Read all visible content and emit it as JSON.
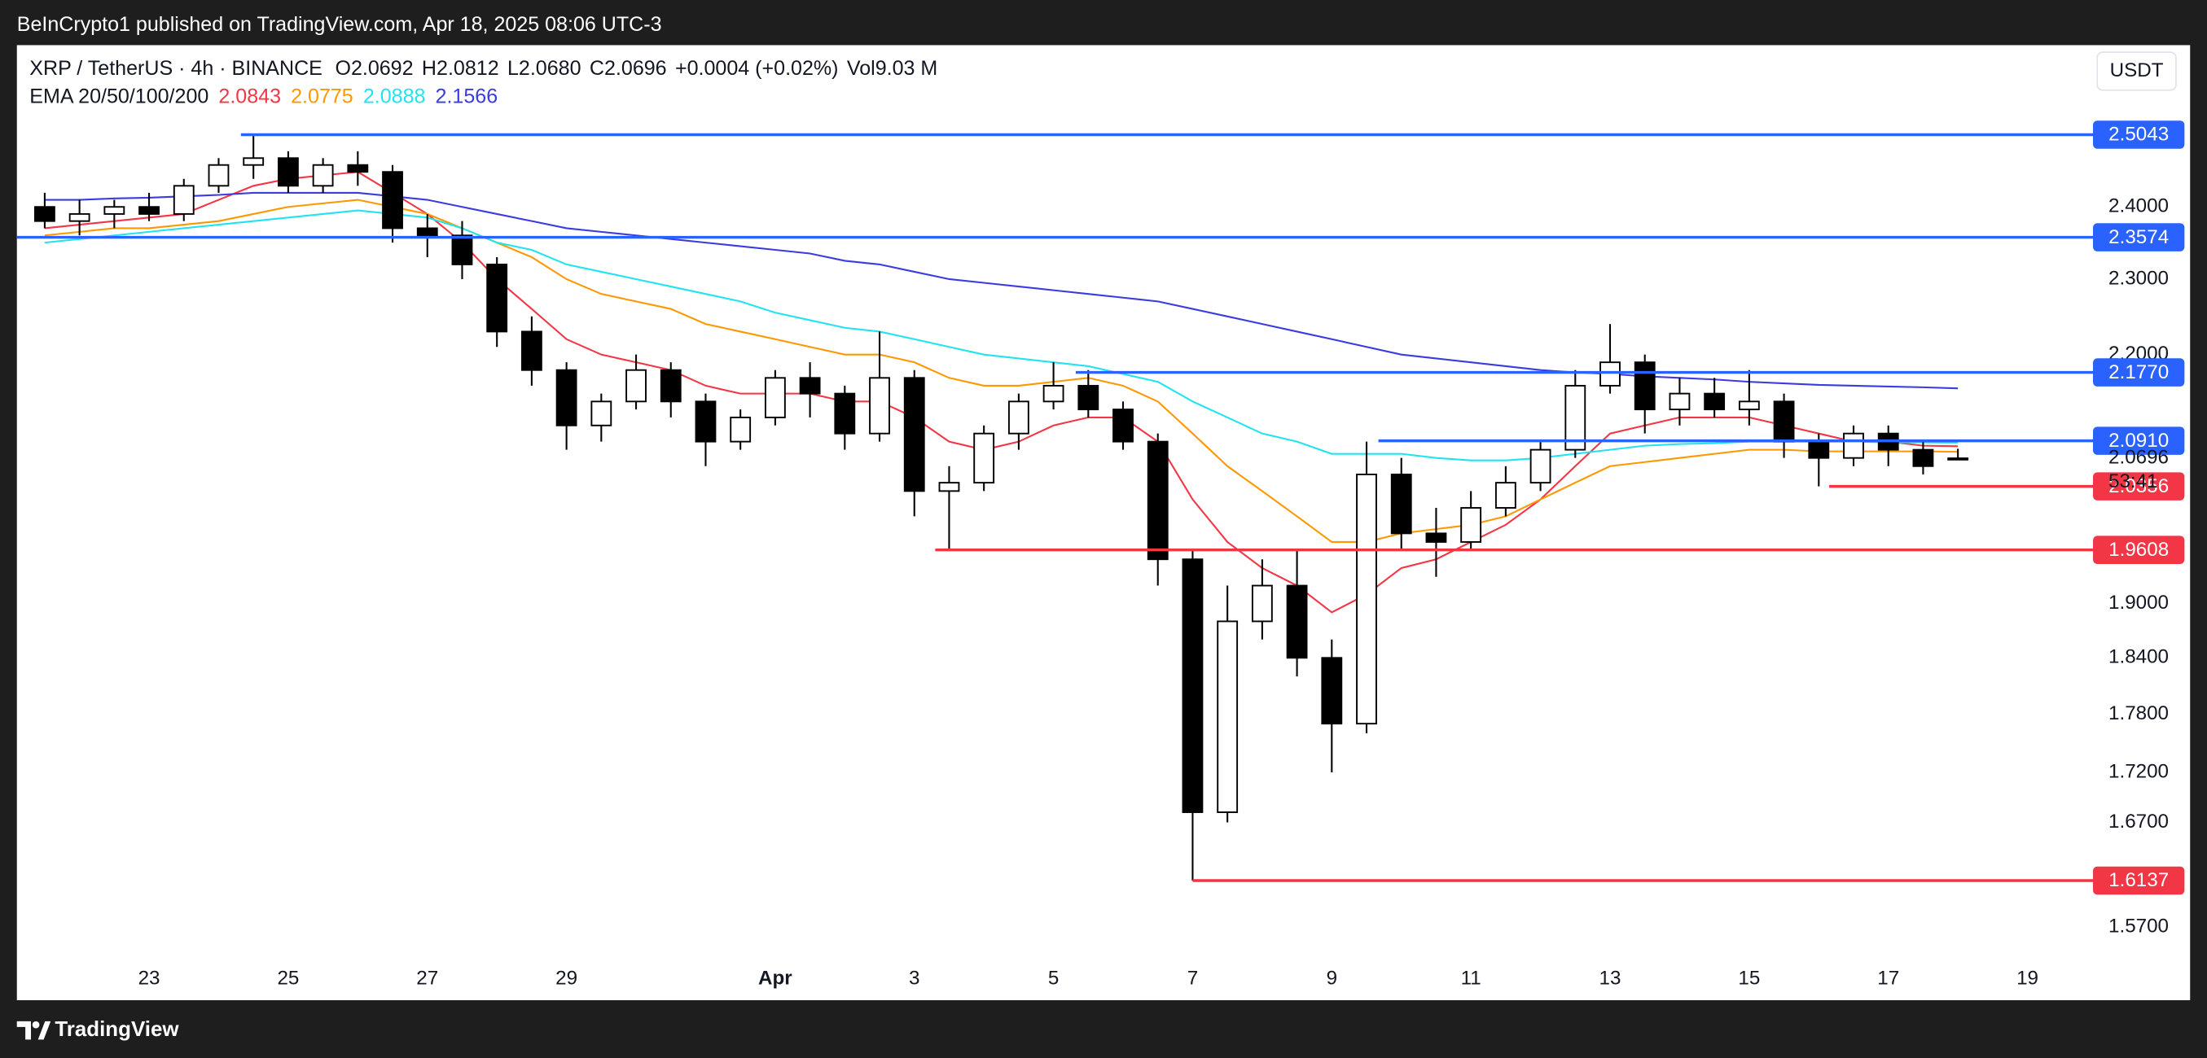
{
  "published_by": "BeInCrypto1 published on TradingView.com, Apr 18, 2025 08:06 UTC-3",
  "brand": "TradingView",
  "chart_data": {
    "type": "candlestick",
    "title": "XRP / TetherUS · 4h · BINANCE",
    "ohlc_legend": [
      {
        "label": "O",
        "value": "2.0692"
      },
      {
        "label": "H",
        "value": "2.0812"
      },
      {
        "label": "L",
        "value": "2.0680"
      },
      {
        "label": "C",
        "value": "2.0696"
      }
    ],
    "change": "+0.0004 (+0.02%)",
    "volume": {
      "label": "Vol",
      "value": "9.03 M"
    },
    "indicator_label": "EMA 20/50/100/200",
    "currency": "USDT",
    "countdown": "53:41",
    "up_color": "#ffffff",
    "down_color": "#000000",
    "x": [
      21.5,
      22,
      22.5,
      23,
      23.5,
      24,
      24.5,
      25,
      25.5,
      26,
      26.5,
      27,
      27.5,
      28,
      28.5,
      29,
      29.5,
      30,
      30.5,
      31,
      31.5,
      32,
      32.5,
      33,
      33.5,
      34,
      34.5,
      35,
      35.5,
      36,
      36.5,
      37,
      37.5,
      38,
      38.5,
      39,
      39.5,
      40,
      40.5,
      41,
      41.5,
      42,
      42.5,
      43,
      43.5,
      44,
      44.5,
      45,
      45.5,
      46,
      46.5,
      47,
      47.5,
      48,
      48.5,
      49
    ],
    "open": [
      2.4,
      2.38,
      2.39,
      2.4,
      2.39,
      2.43,
      2.46,
      2.47,
      2.43,
      2.46,
      2.45,
      2.37,
      2.36,
      2.32,
      2.23,
      2.18,
      2.11,
      2.14,
      2.18,
      2.14,
      2.09,
      2.12,
      2.17,
      2.15,
      2.1,
      2.17,
      2.03,
      2.04,
      2.1,
      2.14,
      2.16,
      2.13,
      2.09,
      1.95,
      1.68,
      1.88,
      1.92,
      1.84,
      1.77,
      2.05,
      1.98,
      1.97,
      2.01,
      2.04,
      2.08,
      2.16,
      2.19,
      2.13,
      2.15,
      2.13,
      2.14,
      2.09,
      2.07,
      2.1,
      2.08,
      2.0692
    ],
    "high": [
      2.42,
      2.41,
      2.41,
      2.42,
      2.44,
      2.47,
      2.5043,
      2.48,
      2.47,
      2.48,
      2.46,
      2.39,
      2.38,
      2.33,
      2.25,
      2.19,
      2.15,
      2.2,
      2.19,
      2.15,
      2.13,
      2.18,
      2.19,
      2.16,
      2.23,
      2.18,
      2.06,
      2.11,
      2.15,
      2.19,
      2.18,
      2.14,
      2.1,
      1.96,
      1.92,
      1.95,
      1.96,
      1.86,
      2.09,
      2.07,
      2.01,
      2.03,
      2.06,
      2.09,
      2.18,
      2.24,
      2.2,
      2.17,
      2.17,
      2.18,
      2.15,
      2.1,
      2.11,
      2.11,
      2.09,
      2.0812
    ],
    "low": [
      2.37,
      2.36,
      2.37,
      2.38,
      2.38,
      2.42,
      2.44,
      2.42,
      2.42,
      2.43,
      2.35,
      2.33,
      2.3,
      2.21,
      2.16,
      2.08,
      2.09,
      2.13,
      2.12,
      2.06,
      2.08,
      2.11,
      2.12,
      2.08,
      2.09,
      2.0,
      1.96,
      2.03,
      2.08,
      2.13,
      2.12,
      2.08,
      1.92,
      1.6137,
      1.67,
      1.86,
      1.82,
      1.72,
      1.76,
      1.96,
      1.93,
      1.96,
      2.0,
      2.03,
      2.07,
      2.15,
      2.1,
      2.11,
      2.12,
      2.11,
      2.07,
      2.0356,
      2.06,
      2.06,
      2.05,
      2.068
    ],
    "close": [
      2.38,
      2.39,
      2.4,
      2.39,
      2.43,
      2.46,
      2.47,
      2.43,
      2.46,
      2.45,
      2.37,
      2.36,
      2.32,
      2.23,
      2.18,
      2.11,
      2.14,
      2.18,
      2.14,
      2.09,
      2.12,
      2.17,
      2.15,
      2.1,
      2.17,
      2.03,
      2.04,
      2.1,
      2.14,
      2.16,
      2.13,
      2.09,
      1.95,
      1.68,
      1.88,
      1.92,
      1.84,
      1.77,
      2.05,
      1.98,
      1.97,
      2.01,
      2.04,
      2.08,
      2.16,
      2.19,
      2.13,
      2.15,
      2.13,
      2.14,
      2.09,
      2.07,
      2.1,
      2.08,
      2.06,
      2.0696
    ],
    "series": [
      {
        "color": "#f23645",
        "values": [
          2.37,
          2.375,
          2.38,
          2.385,
          2.39,
          2.41,
          2.43,
          2.44,
          2.445,
          2.45,
          2.42,
          2.39,
          2.35,
          2.3,
          2.26,
          2.22,
          2.2,
          2.19,
          2.18,
          2.16,
          2.15,
          2.15,
          2.15,
          2.14,
          2.14,
          2.12,
          2.09,
          2.08,
          2.09,
          2.11,
          2.12,
          2.12,
          2.09,
          2.02,
          1.97,
          1.94,
          1.92,
          1.89,
          1.91,
          1.94,
          1.95,
          1.97,
          1.99,
          2.02,
          2.06,
          2.1,
          2.11,
          2.12,
          2.12,
          2.12,
          2.11,
          2.1,
          2.09,
          2.09,
          2.085,
          2.0843
        ]
      },
      {
        "color": "#ff9800",
        "values": [
          2.36,
          2.365,
          2.37,
          2.37,
          2.375,
          2.38,
          2.39,
          2.4,
          2.405,
          2.41,
          2.4,
          2.39,
          2.37,
          2.35,
          2.33,
          2.3,
          2.28,
          2.27,
          2.26,
          2.24,
          2.23,
          2.22,
          2.21,
          2.2,
          2.2,
          2.19,
          2.17,
          2.16,
          2.16,
          2.165,
          2.17,
          2.16,
          2.14,
          2.1,
          2.06,
          2.03,
          2.0,
          1.97,
          1.97,
          1.98,
          1.985,
          1.99,
          2.0,
          2.02,
          2.04,
          2.06,
          2.065,
          2.07,
          2.075,
          2.08,
          2.08,
          2.078,
          2.078,
          2.078,
          2.078,
          2.0775
        ]
      },
      {
        "color": "#22e3f0",
        "values": [
          2.35,
          2.355,
          2.36,
          2.365,
          2.37,
          2.375,
          2.38,
          2.385,
          2.39,
          2.395,
          2.39,
          2.385,
          2.37,
          2.35,
          2.34,
          2.32,
          2.31,
          2.3,
          2.29,
          2.28,
          2.27,
          2.255,
          2.245,
          2.235,
          2.23,
          2.22,
          2.21,
          2.2,
          2.195,
          2.19,
          2.185,
          2.175,
          2.165,
          2.14,
          2.12,
          2.1,
          2.09,
          2.075,
          2.075,
          2.075,
          2.07,
          2.067,
          2.067,
          2.07,
          2.075,
          2.08,
          2.085,
          2.087,
          2.088,
          2.09,
          2.09,
          2.09,
          2.09,
          2.089,
          2.089,
          2.0888
        ]
      },
      {
        "color": "#3b3be0",
        "values": [
          2.41,
          2.41,
          2.412,
          2.413,
          2.415,
          2.417,
          2.42,
          2.42,
          2.42,
          2.42,
          2.415,
          2.41,
          2.4,
          2.39,
          2.38,
          2.37,
          2.365,
          2.36,
          2.355,
          2.35,
          2.345,
          2.34,
          2.335,
          2.325,
          2.32,
          2.31,
          2.3,
          2.295,
          2.29,
          2.285,
          2.28,
          2.275,
          2.27,
          2.26,
          2.25,
          2.24,
          2.23,
          2.22,
          2.21,
          2.2,
          2.195,
          2.19,
          2.185,
          2.18,
          2.177,
          2.175,
          2.172,
          2.17,
          2.168,
          2.165,
          2.163,
          2.161,
          2.16,
          2.159,
          2.158,
          2.1566
        ]
      }
    ],
    "levels": [
      {
        "value": 2.5043,
        "label": "2.5043",
        "color": "#2962ff",
        "from": 24.32
      },
      {
        "value": 2.3574,
        "label": "2.3574",
        "color": "#2962ff",
        "from": 21.1
      },
      {
        "value": 2.177,
        "label": "2.1770",
        "color": "#2962ff",
        "from": 36.32
      },
      {
        "value": 2.091,
        "label": "2.0910",
        "color": "#2962ff",
        "from": 40.67
      },
      {
        "value": 2.0356,
        "label": "2.0356",
        "color": "#f23645",
        "from": 47.15
      },
      {
        "value": 1.9608,
        "label": "1.9608",
        "color": "#f23645",
        "from": 34.3
      },
      {
        "value": 1.6137,
        "label": "1.6137",
        "color": "#f23645",
        "from": 38.0
      }
    ],
    "xlim": [
      21.1,
      50.8
    ],
    "xticks": [
      23,
      25,
      27,
      29,
      {
        "value": 32,
        "label": "Apr"
      },
      {
        "value": 34,
        "label": "3"
      },
      {
        "value": 36,
        "label": "5"
      },
      {
        "value": 38,
        "label": "7"
      },
      {
        "value": 40,
        "label": "9"
      },
      {
        "value": 42,
        "label": "11"
      },
      {
        "value": 44,
        "label": "13"
      },
      {
        "value": 46,
        "label": "15"
      },
      {
        "value": 48,
        "label": "17"
      },
      {
        "value": 50,
        "label": "19"
      }
    ],
    "ylim": [
      1.543,
      2.64
    ],
    "log_y": true,
    "yticks": [
      {
        "value": 1.57,
        "label": "1.5700"
      },
      {
        "value": 1.67,
        "label": "1.6700"
      },
      {
        "value": 1.72,
        "label": "1.7200"
      },
      {
        "value": 1.78,
        "label": "1.7800"
      },
      {
        "value": 1.84,
        "label": "1.8400"
      },
      {
        "value": 1.9,
        "label": "1.9000"
      },
      {
        "value": 2.2,
        "label": "2.2000"
      },
      {
        "value": 2.3,
        "label": "2.3000"
      },
      {
        "value": 2.4,
        "label": "2.4000"
      }
    ]
  }
}
